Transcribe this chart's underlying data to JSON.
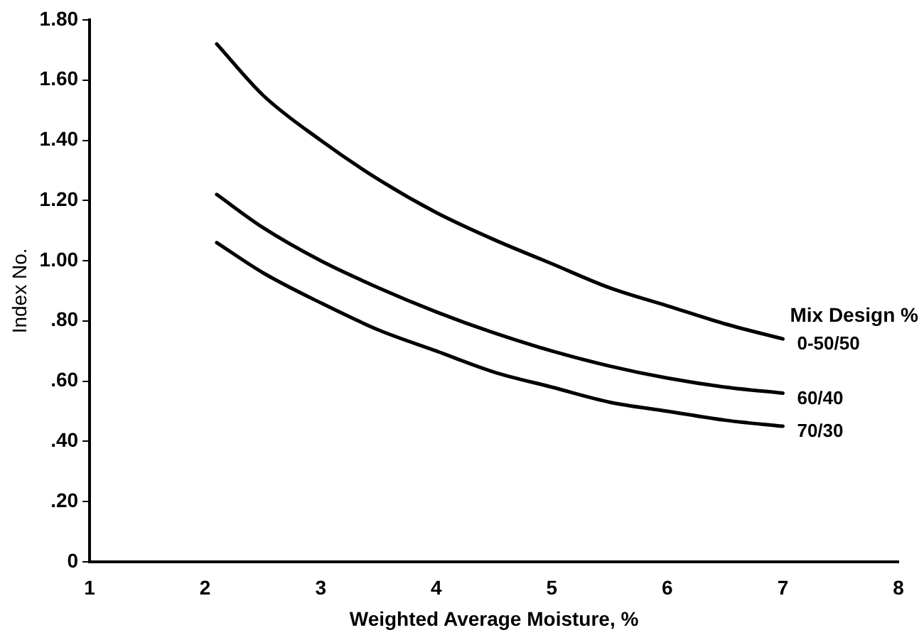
{
  "chart_data": {
    "type": "line",
    "xlabel": "Weighted Average Moisture, %",
    "ylabel": "Index No.",
    "legend_title": "Mix Design %",
    "xlim": [
      1,
      8
    ],
    "xticks": [
      1,
      2,
      3,
      4,
      5,
      6,
      7,
      8
    ],
    "ylim": [
      0,
      1.8
    ],
    "yticks": [
      0,
      {
        "value": 0.2,
        "label": ".20"
      },
      {
        "value": 0.4,
        "label": ".40"
      },
      {
        "value": 0.6,
        "label": ".60"
      },
      {
        "value": 0.8,
        "label": ".80"
      },
      {
        "value": 1.0,
        "label": "1.00"
      },
      {
        "value": 1.2,
        "label": "1.20"
      },
      {
        "value": 1.4,
        "label": "1.40"
      },
      {
        "value": 1.6,
        "label": "1.60"
      },
      {
        "value": 1.8,
        "label": "1.80"
      }
    ],
    "x": [
      2.1,
      2.5,
      3,
      3.5,
      4,
      4.5,
      5,
      5.5,
      6,
      6.5,
      7
    ],
    "grid": false,
    "legend": false,
    "marker": "none",
    "line_style": "solid",
    "series": [
      {
        "name": "0-50/50",
        "color": "#000000",
        "values": [
          1.72,
          1.55,
          1.4,
          1.27,
          1.16,
          1.07,
          0.99,
          0.91,
          0.85,
          0.79,
          0.74
        ]
      },
      {
        "name": "60/40",
        "color": "#000000",
        "values": [
          1.22,
          1.11,
          1.0,
          0.91,
          0.83,
          0.76,
          0.7,
          0.65,
          0.61,
          0.58,
          0.56
        ]
      },
      {
        "name": "70/30",
        "color": "#000000",
        "values": [
          1.06,
          0.96,
          0.86,
          0.77,
          0.7,
          0.63,
          0.58,
          0.53,
          0.5,
          0.47,
          0.45
        ]
      }
    ]
  }
}
